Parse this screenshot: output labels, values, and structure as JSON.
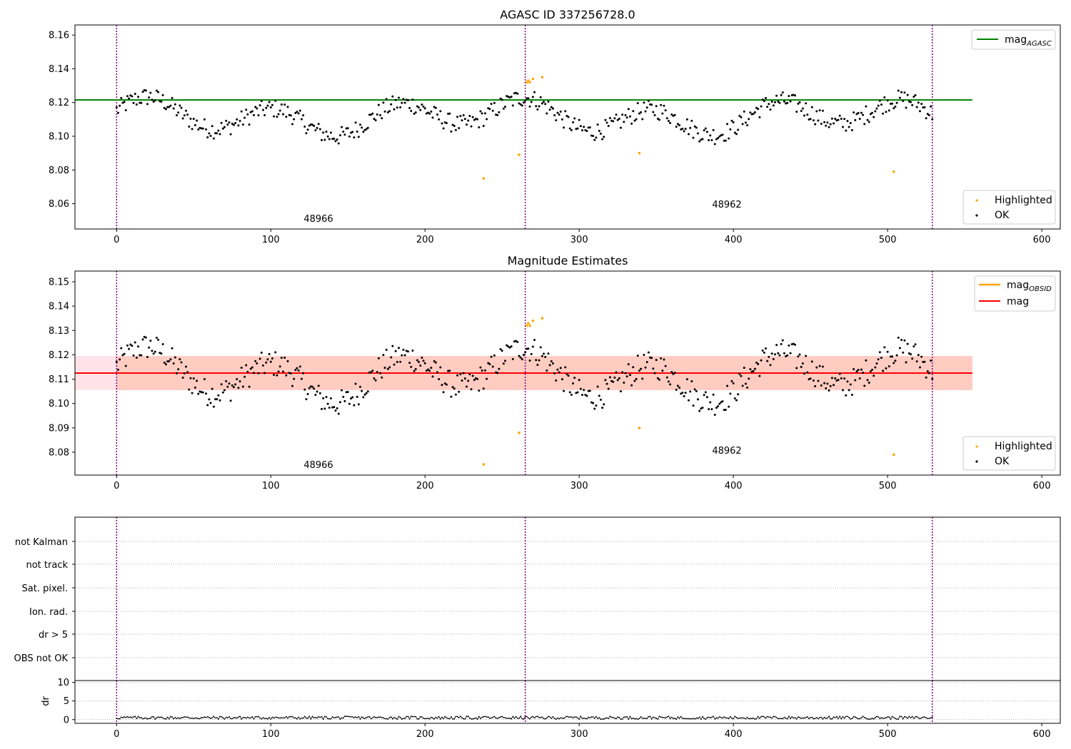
{
  "chart_data": [
    {
      "id": "agasc",
      "type": "scatter",
      "title": "AGASC ID 337256728.0",
      "xlim": [
        -27,
        612
      ],
      "ylim": [
        8.045,
        8.166
      ],
      "xticks": [
        0,
        100,
        200,
        300,
        400,
        500,
        600
      ],
      "yticks": [
        8.06,
        8.08,
        8.1,
        8.12,
        8.14,
        8.16
      ],
      "ytick_labels": [
        "8.06",
        "8.08",
        "8.10",
        "8.12",
        "8.14",
        "8.16"
      ],
      "vlines": [
        0,
        265,
        529
      ],
      "vline_color": "#800080",
      "hline": {
        "y": 8.1215,
        "x0": -27,
        "x1": 555,
        "color": "#008000"
      },
      "annotations": [
        {
          "text": "48966",
          "x": 132,
          "y": 8.049
        },
        {
          "text": "48962",
          "x": 397,
          "y": 8.0575
        }
      ],
      "legend_top": {
        "position": "top-right",
        "entries": [
          {
            "label": "mag",
            "sub": "AGASC",
            "color": "#008000"
          }
        ]
      },
      "legend_bottom": {
        "position": "bottom-right",
        "entries": [
          {
            "label": "Highlighted",
            "color": "#ffa500"
          },
          {
            "label": "OK",
            "color": "#000000"
          }
        ]
      },
      "highlighted_points": [
        [
          238,
          8.075
        ],
        [
          261,
          8.089
        ],
        [
          266,
          8.132
        ],
        [
          267,
          8.133
        ],
        [
          268,
          8.132
        ],
        [
          270,
          8.134
        ],
        [
          276,
          8.135
        ],
        [
          339,
          8.09
        ],
        [
          504,
          8.079
        ]
      ]
    },
    {
      "id": "mag",
      "type": "scatter",
      "title": "Magnitude Estimates",
      "xlim": [
        -27,
        612
      ],
      "ylim": [
        8.0706,
        8.1544
      ],
      "xticks": [
        0,
        100,
        200,
        300,
        400,
        500,
        600
      ],
      "yticks": [
        8.08,
        8.09,
        8.1,
        8.11,
        8.12,
        8.13,
        8.14,
        8.15
      ],
      "ytick_labels": [
        "8.08",
        "8.09",
        "8.10",
        "8.11",
        "8.12",
        "8.13",
        "8.14",
        "8.15"
      ],
      "vlines": [
        0,
        265,
        529
      ],
      "vline_color": "#800080",
      "hline": {
        "y": 8.1125,
        "x0": -27,
        "x1": 555,
        "color": "#ff0000"
      },
      "bands": [
        {
          "y0": 8.1055,
          "y1": 8.1195,
          "x0": -27,
          "x1": 555,
          "color": "#ffc0cb",
          "opacity": 0.45
        },
        {
          "y0": 8.1055,
          "y1": 8.1195,
          "x0": 0,
          "x1": 555,
          "color": "#ffa07a",
          "opacity": 0.35
        }
      ],
      "annotations": [
        {
          "text": "48966",
          "x": 132,
          "y": 8.0735
        },
        {
          "text": "48962",
          "x": 397,
          "y": 8.0795
        }
      ],
      "legend_top": {
        "position": "top-right",
        "entries": [
          {
            "label": "mag",
            "sub": "OBSID",
            "color": "#ffa500"
          },
          {
            "label": "mag",
            "sub": "",
            "color": "#ff0000"
          }
        ]
      },
      "legend_bottom": {
        "position": "bottom-right",
        "entries": [
          {
            "label": "Highlighted",
            "color": "#ffa500"
          },
          {
            "label": "OK",
            "color": "#000000"
          }
        ]
      },
      "highlighted_points": [
        [
          238,
          8.075
        ],
        [
          261,
          8.088
        ],
        [
          266,
          8.132
        ],
        [
          267,
          8.133
        ],
        [
          268,
          8.132
        ],
        [
          270,
          8.134
        ],
        [
          276,
          8.135
        ],
        [
          339,
          8.09
        ],
        [
          504,
          8.079
        ]
      ]
    },
    {
      "id": "flags",
      "type": "scatter",
      "title": "",
      "xlim": [
        -27,
        612
      ],
      "categories": [
        "not Kalman",
        "not track",
        "Sat. pixel.",
        "Ion. rad.",
        "dr > 5",
        "OBS not OK"
      ],
      "vlines": [
        0,
        265,
        529
      ],
      "vline_color": "#800080"
    },
    {
      "id": "dr",
      "type": "line",
      "title": "",
      "ylabel": "dr",
      "xlim": [
        -27,
        612
      ],
      "ylim": [
        -1,
        10.5
      ],
      "xticks": [
        0,
        100,
        200,
        300,
        400,
        500,
        600
      ],
      "yticks": [
        0,
        5,
        10
      ],
      "ytick_labels": [
        "0",
        "5",
        "10"
      ],
      "vlines": [
        0,
        265,
        529
      ],
      "vline_color": "#800080",
      "n_points": 530,
      "value_range": [
        0.1,
        0.9
      ]
    }
  ]
}
